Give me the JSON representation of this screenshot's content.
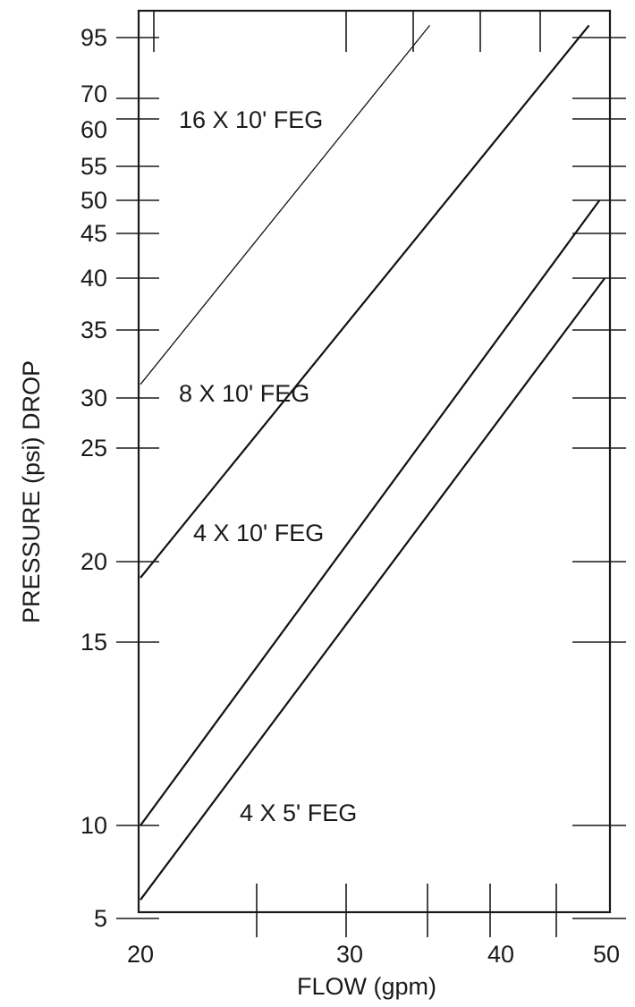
{
  "chart_data": {
    "type": "line",
    "title": "",
    "xlabel": "FLOW (gpm)",
    "ylabel": "PRESSURE (psi) DROP",
    "x_ticks": [
      "20",
      "30",
      "40",
      "50"
    ],
    "y_ticks": [
      "5",
      "10",
      "15",
      "20",
      "25",
      "30",
      "35",
      "40",
      "45",
      "50",
      "55",
      "60",
      "70",
      "95"
    ],
    "grid": false,
    "legend": "inline labels",
    "series": [
      {
        "name": "16 X 10' FEG",
        "points": [
          [
            20,
            31
          ],
          [
            35,
            100
          ]
        ]
      },
      {
        "name": "8 X 10' FEG",
        "points": [
          [
            20,
            19
          ],
          [
            47.5,
            100
          ]
        ]
      },
      {
        "name": "4 X 10' FEG",
        "points": [
          [
            20,
            10
          ],
          [
            48.5,
            50
          ]
        ]
      },
      {
        "name": "4 X 5' FEG",
        "points": [
          [
            20,
            6
          ],
          [
            49,
            40
          ]
        ]
      }
    ]
  }
}
